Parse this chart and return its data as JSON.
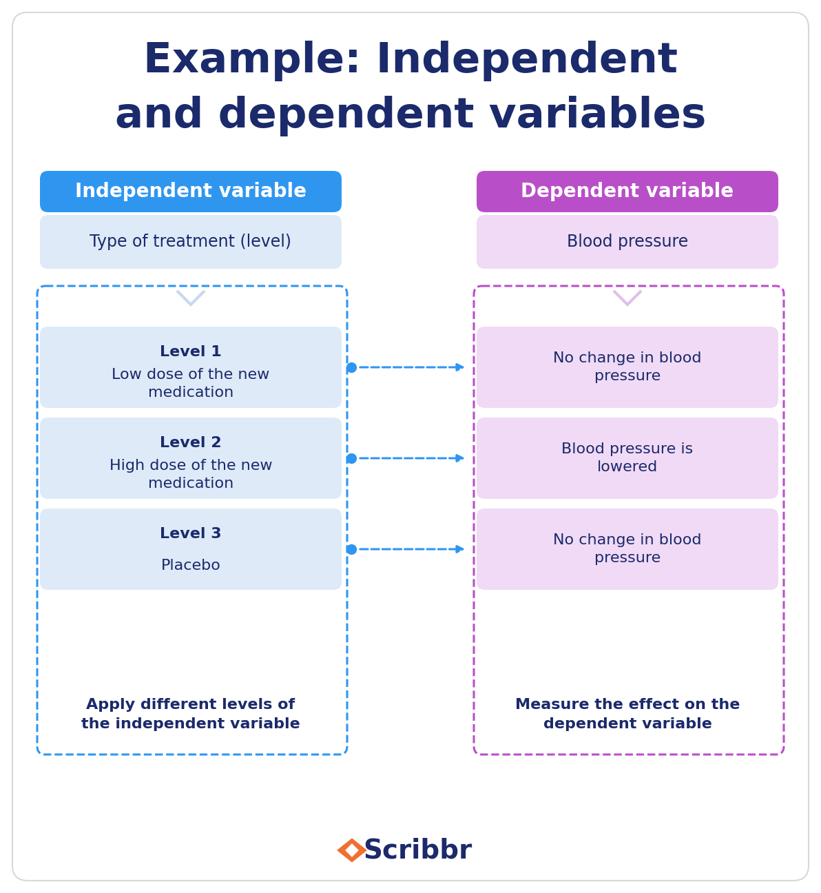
{
  "title_line1": "Example: Independent",
  "title_line2": "and dependent variables",
  "title_color": "#1b2a6b",
  "bg_color": "#ffffff",
  "left_header_text": "Independent variable",
  "right_header_text": "Dependent variable",
  "left_header_bg": "#2f96f0",
  "right_header_bg": "#b94fc8",
  "left_box_bg": "#deeaf8",
  "right_box_bg": "#f0daf5",
  "left_top_text": "Type of treatment (level)",
  "right_top_text": "Blood pressure",
  "left_levels": [
    {
      "bold": "Level 1",
      "normal": "Low dose of the new\nmedication"
    },
    {
      "bold": "Level 2",
      "normal": "High dose of the new\nmedication"
    },
    {
      "bold": "Level 3",
      "normal": "Placebo"
    }
  ],
  "right_levels": [
    "No change in blood\npressure",
    "Blood pressure is\nlowered",
    "No change in blood\npressure"
  ],
  "left_bottom_text": "Apply different levels of\nthe independent variable",
  "right_bottom_text": "Measure the effect on the\ndependent variable",
  "arrow_color": "#2f96f0",
  "left_dashed_color": "#2f96f0",
  "right_dashed_color": "#b94fc8",
  "text_dark": "#1b2a6b",
  "text_body": "#1b2a6b",
  "chevron_left_color": "#c8d8ee",
  "chevron_right_color": "#e0c0e8",
  "scribbr_text_color": "#1b2a6b",
  "scribbr_icon_color": "#f07030"
}
